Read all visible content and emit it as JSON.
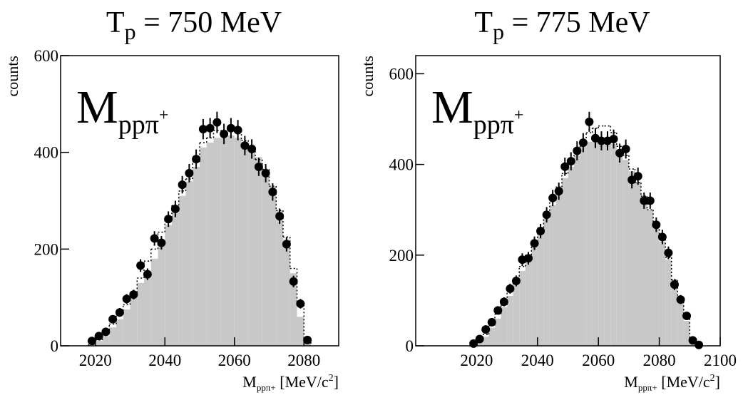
{
  "chart_data": [
    {
      "type": "histogram",
      "title": [
        "T",
        "p",
        " = 750 MeV"
      ],
      "annotation": [
        "M",
        "ppπ",
        "+"
      ],
      "xlabel": [
        "M",
        "ppπ+",
        " [MeV/c",
        "2",
        "]"
      ],
      "ylabel": "counts",
      "xlim": [
        2010,
        2090
      ],
      "ylim": [
        0,
        600
      ],
      "xticks": [
        2020,
        2040,
        2060,
        2080
      ],
      "yticks": [
        0,
        200,
        400,
        600
      ],
      "histograms": [
        {
          "style": "filled",
          "color": "#c8c8c8",
          "bins": [
            2018,
            2020,
            2022,
            2024,
            2026,
            2028,
            2030,
            2032,
            2034,
            2036,
            2038,
            2040,
            2042,
            2044,
            2046,
            2048,
            2050,
            2052,
            2054,
            2056,
            2058,
            2060,
            2062,
            2064,
            2066,
            2068,
            2070,
            2072,
            2074,
            2076,
            2078,
            2080,
            2082
          ],
          "counts": [
            3,
            10,
            20,
            38,
            55,
            75,
            100,
            130,
            150,
            180,
            210,
            250,
            275,
            310,
            340,
            370,
            410,
            420,
            430,
            430,
            435,
            430,
            420,
            405,
            390,
            360,
            330,
            280,
            220,
            150,
            60,
            5
          ]
        },
        {
          "style": "dotted",
          "color": "#000000",
          "bins": [
            2018,
            2020,
            2022,
            2024,
            2026,
            2028,
            2030,
            2032,
            2034,
            2036,
            2038,
            2040,
            2042,
            2044,
            2046,
            2048,
            2050,
            2052,
            2054,
            2056,
            2058,
            2060,
            2062,
            2064,
            2066,
            2068,
            2070,
            2072,
            2074,
            2076,
            2078,
            2080,
            2082
          ],
          "counts": [
            5,
            12,
            25,
            45,
            65,
            85,
            110,
            140,
            175,
            200,
            235,
            265,
            290,
            320,
            345,
            380,
            420,
            430,
            445,
            445,
            450,
            445,
            425,
            410,
            385,
            365,
            330,
            280,
            225,
            160,
            85,
            15
          ]
        }
      ],
      "x": [
        2019,
        2021,
        2023,
        2025,
        2027,
        2029,
        2031,
        2033,
        2035,
        2037,
        2039,
        2041,
        2043,
        2045,
        2047,
        2049,
        2051,
        2053,
        2055,
        2057,
        2059,
        2061,
        2063,
        2065,
        2067,
        2069,
        2071,
        2073,
        2075,
        2077,
        2079,
        2081
      ],
      "series": [
        {
          "color": "#000000",
          "values": [
            10,
            20,
            29,
            55,
            69,
            97,
            106,
            166,
            148,
            222,
            213,
            262,
            283,
            333,
            357,
            386,
            448,
            450,
            462,
            438,
            450,
            446,
            414,
            407,
            370,
            357,
            318,
            268,
            210,
            133,
            87,
            12
          ],
          "errors": [
            4,
            5,
            6,
            8,
            9,
            10,
            10,
            13,
            12,
            15,
            14,
            16,
            17,
            18,
            19,
            20,
            21,
            21,
            22,
            21,
            21,
            21,
            20,
            20,
            19,
            19,
            18,
            16,
            15,
            12,
            10,
            4
          ]
        }
      ]
    },
    {
      "type": "histogram",
      "title": [
        "T",
        "p",
        " = 775 MeV"
      ],
      "annotation": [
        "M",
        "ppπ",
        "+"
      ],
      "xlabel": [
        "M",
        "ppπ+",
        " [MeV/c",
        "2",
        "]"
      ],
      "ylabel": "counts",
      "xlim": [
        2000,
        2100
      ],
      "ylim": [
        0,
        640
      ],
      "xticks": [
        2020,
        2040,
        2060,
        2080,
        2100
      ],
      "yticks": [
        0,
        200,
        400,
        600
      ],
      "histograms": [
        {
          "style": "filled",
          "color": "#c8c8c8",
          "bins": [
            2018,
            2020,
            2022,
            2024,
            2026,
            2028,
            2030,
            2032,
            2034,
            2036,
            2038,
            2040,
            2042,
            2044,
            2046,
            2048,
            2050,
            2052,
            2054,
            2056,
            2058,
            2060,
            2062,
            2064,
            2066,
            2068,
            2070,
            2072,
            2074,
            2076,
            2078,
            2080,
            2082,
            2084,
            2086,
            2088,
            2090,
            2092,
            2094
          ],
          "counts": [
            2,
            8,
            20,
            40,
            60,
            85,
            110,
            135,
            165,
            190,
            220,
            245,
            280,
            310,
            340,
            370,
            395,
            420,
            440,
            450,
            455,
            455,
            450,
            445,
            430,
            410,
            385,
            360,
            330,
            300,
            265,
            230,
            190,
            140,
            100,
            55,
            15,
            2
          ]
        },
        {
          "style": "dotted",
          "color": "#000000",
          "bins": [
            2018,
            2020,
            2022,
            2024,
            2026,
            2028,
            2030,
            2032,
            2034,
            2036,
            2038,
            2040,
            2042,
            2044,
            2046,
            2048,
            2050,
            2052,
            2054,
            2056,
            2058,
            2060,
            2062,
            2064,
            2066,
            2068,
            2070,
            2072,
            2074,
            2076,
            2078,
            2080,
            2082,
            2084,
            2086,
            2088,
            2090,
            2092,
            2094
          ],
          "counts": [
            3,
            10,
            25,
            45,
            70,
            90,
            120,
            145,
            175,
            200,
            230,
            260,
            290,
            320,
            350,
            380,
            410,
            430,
            450,
            470,
            480,
            485,
            485,
            470,
            440,
            420,
            390,
            360,
            330,
            300,
            265,
            235,
            195,
            145,
            105,
            60,
            15,
            2
          ]
        }
      ],
      "x": [
        2019,
        2021,
        2023,
        2025,
        2027,
        2029,
        2031,
        2033,
        2035,
        2037,
        2039,
        2041,
        2043,
        2045,
        2047,
        2049,
        2051,
        2053,
        2055,
        2057,
        2059,
        2061,
        2063,
        2065,
        2067,
        2069,
        2071,
        2073,
        2075,
        2077,
        2079,
        2081,
        2083,
        2085,
        2087,
        2089,
        2091,
        2093
      ],
      "series": [
        {
          "color": "#000000",
          "values": [
            5,
            15,
            36,
            52,
            78,
            97,
            126,
            143,
            190,
            193,
            226,
            253,
            289,
            326,
            341,
            395,
            407,
            430,
            448,
            494,
            458,
            452,
            452,
            456,
            425,
            434,
            366,
            374,
            320,
            320,
            267,
            240,
            205,
            135,
            102,
            66,
            12,
            2
          ],
          "errors": [
            3,
            4,
            6,
            7,
            9,
            10,
            11,
            12,
            14,
            14,
            15,
            16,
            17,
            18,
            19,
            20,
            20,
            21,
            21,
            22,
            22,
            21,
            21,
            21,
            21,
            21,
            19,
            19,
            18,
            18,
            16,
            16,
            14,
            12,
            10,
            8,
            4,
            2
          ]
        }
      ]
    }
  ]
}
